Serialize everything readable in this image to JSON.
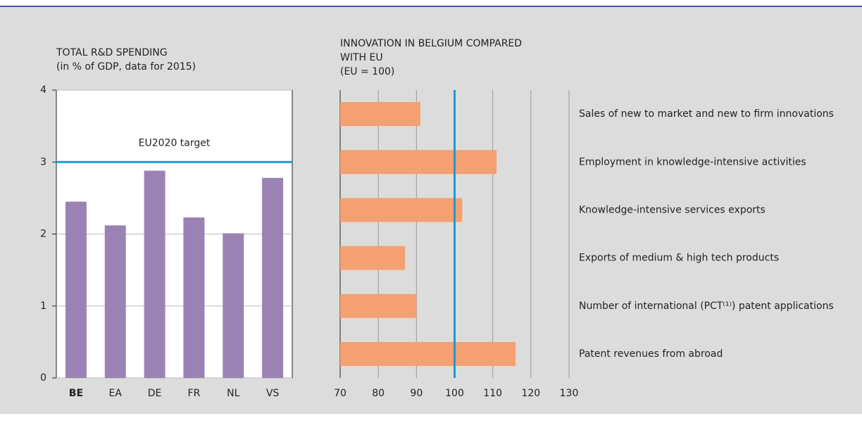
{
  "chart_data": [
    {
      "type": "bar",
      "title": [
        "TOTAL R&D SPENDING"
      ],
      "subtitle": "(in % of GDP, data for 2015)",
      "categories": [
        "BE",
        "EA",
        "DE",
        "FR",
        "NL",
        "VS"
      ],
      "values": [
        2.45,
        2.12,
        2.88,
        2.23,
        2.01,
        2.78
      ],
      "color": "#9b82b4",
      "ylim": [
        0,
        4
      ],
      "yticks": [
        0,
        1,
        2,
        3,
        4
      ],
      "grid": true,
      "reference_line": {
        "value": 3,
        "label": "EU2020 target",
        "color": "#1a9ad6"
      }
    },
    {
      "type": "barh",
      "title": [
        "INNOVATION IN BELGIUM COMPARED",
        "WITH EU"
      ],
      "subtitle": "(EU = 100)",
      "categories": [
        "Sales of new to market and new to firm innovations",
        "Employment in knowledge-intensive activities",
        "Knowledge-intensive services exports",
        "Exports of medium & high tech products",
        "Number of international (PCT⁽¹⁾) patent applications",
        "Patent revenues from abroad"
      ],
      "values": [
        91,
        111,
        102,
        87,
        90,
        116
      ],
      "color": "#f5a070",
      "xlim": [
        70,
        130
      ],
      "xticks": [
        70,
        80,
        90,
        100,
        110,
        120,
        130
      ],
      "grid": true,
      "reference_line": {
        "value": 100,
        "color": "#1a9ad6"
      }
    }
  ]
}
